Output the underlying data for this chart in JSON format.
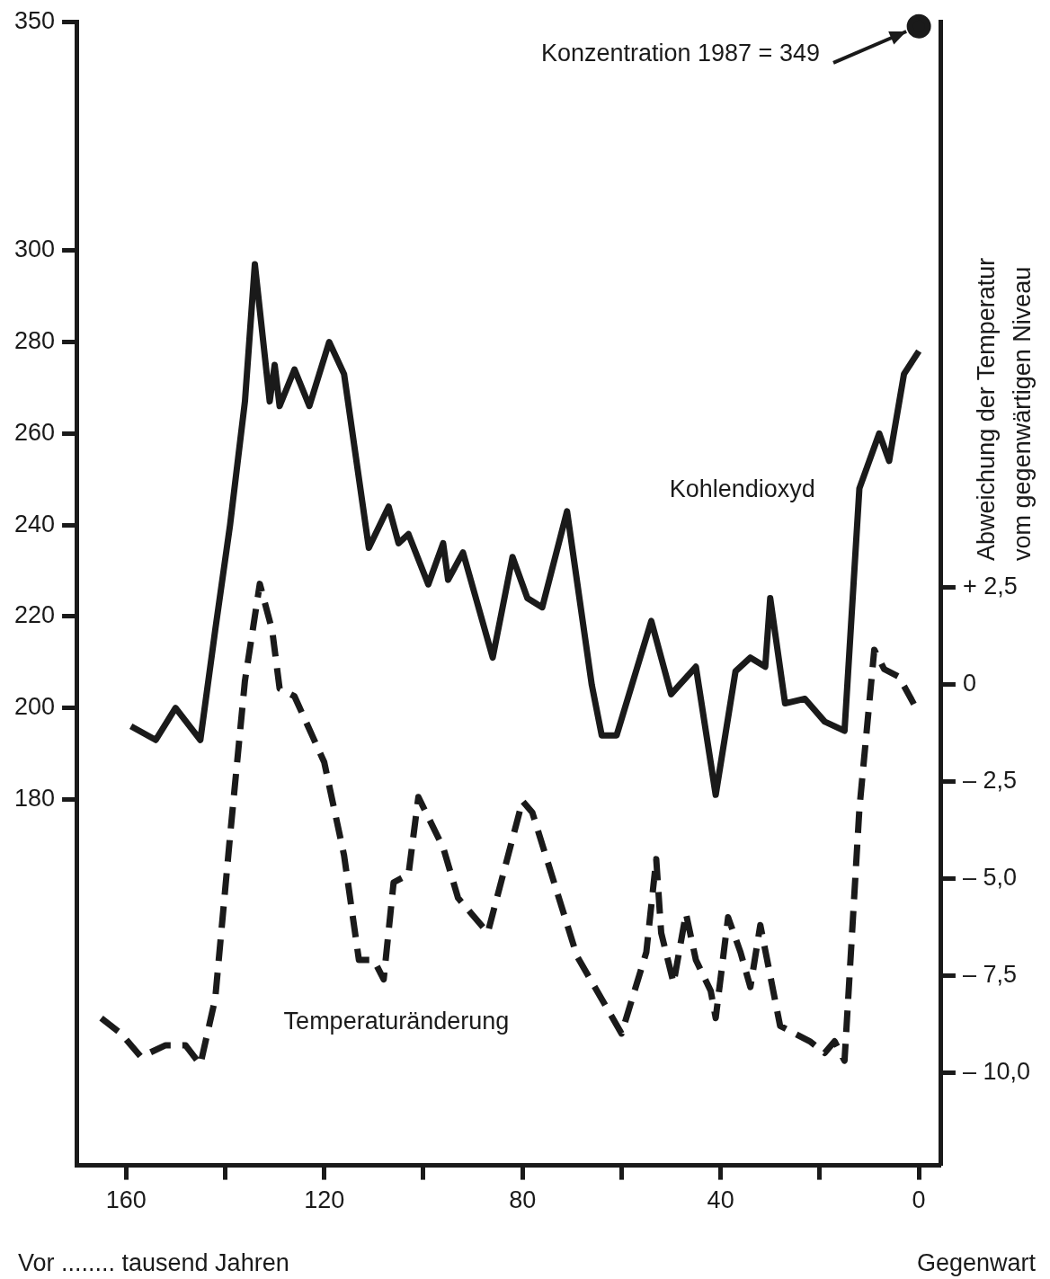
{
  "chart_data": {
    "type": "line",
    "xlabel": "Vor ........ tausend Jahren",
    "y2label": "Abweichung der Temperatur vom gegenwärtigen Niveau",
    "marker": "none",
    "xlim": [
      170,
      -4.5
    ],
    "xticks": [
      160,
      {
        "value": 140,
        "label": null
      },
      120,
      {
        "value": 100,
        "label": null
      },
      80,
      {
        "value": 60,
        "label": null
      },
      40,
      {
        "value": 20,
        "label": null
      },
      0
    ],
    "ylim": [
      100,
      350
    ],
    "yticks": [
      180,
      200,
      220,
      240,
      260,
      280,
      300,
      350
    ],
    "y2lim": [
      -12.4,
      17.1
    ],
    "y2ticks": [
      {
        "value": 2.5,
        "label": "+ 2,5"
      },
      {
        "value": 0,
        "label": "0"
      },
      {
        "value": -2.5,
        "label": "– 2,5"
      },
      {
        "value": -5,
        "label": "– 5,0"
      },
      {
        "value": -7.5,
        "label": "– 7,5"
      },
      {
        "value": -10,
        "label": "– 10,0"
      }
    ],
    "series": [
      {
        "name": "Kohlendioxyd",
        "color": "#1a1a1a",
        "x": [
          159,
          154,
          150,
          145,
          142,
          139,
          136,
          134,
          131,
          130,
          129,
          126,
          123,
          119,
          116,
          111,
          107,
          105,
          103,
          99,
          96,
          95,
          92,
          86,
          82,
          79,
          76,
          71,
          66,
          64,
          61,
          54,
          50,
          45,
          41,
          37,
          34,
          31,
          30,
          27,
          23,
          19,
          15,
          12,
          8,
          6,
          3,
          0
        ],
        "values": [
          196,
          193,
          200,
          193,
          217,
          240,
          267,
          297,
          267,
          275,
          266,
          274,
          266,
          280,
          273,
          235,
          244,
          236,
          238,
          227,
          236,
          228,
          234,
          211,
          233,
          224,
          222,
          243,
          205,
          194,
          194,
          219,
          203,
          209,
          181,
          208,
          211,
          209,
          224,
          201,
          202,
          197,
          195,
          248,
          260,
          254,
          273,
          278
        ]
      },
      {
        "name": "Temperaturänderung",
        "color": "#1a1a1a",
        "axis": "y2",
        "line_style": "dashed",
        "x": [
          165,
          161,
          157,
          152,
          148,
          145,
          142,
          139,
          136,
          133,
          130.5,
          129,
          126,
          120,
          116,
          113,
          110,
          108,
          106,
          103,
          101,
          96,
          93,
          87,
          80,
          78,
          69,
          60,
          55,
          53,
          52,
          49.5,
          47,
          45,
          42,
          41,
          38.5,
          36,
          34,
          32,
          28,
          22,
          19,
          17,
          15,
          12,
          9,
          7,
          4,
          1
        ],
        "values": [
          -8.6,
          -9.0,
          -9.6,
          -9.3,
          -9.3,
          -9.8,
          -8.1,
          -3.9,
          0.1,
          2.6,
          1.4,
          -0.1,
          -0.3,
          -2.0,
          -4.4,
          -7.1,
          -7.1,
          -7.6,
          -5.1,
          -4.9,
          -2.9,
          -4.2,
          -5.5,
          -6.4,
          -3.0,
          -3.3,
          -7.0,
          -9.0,
          -6.9,
          -4.5,
          -6.4,
          -7.7,
          -5.9,
          -7.1,
          -7.9,
          -8.6,
          -6.0,
          -6.9,
          -7.8,
          -6.2,
          -8.8,
          -9.2,
          -9.5,
          -9.2,
          -9.7,
          -3.2,
          0.9,
          0.4,
          0.2,
          -0.5
        ]
      },
      {
        "type": "scatter",
        "marker": "circle",
        "color": "#1a1a1a",
        "x": [
          0
        ],
        "values": [
          349
        ]
      }
    ],
    "annotations": [
      "Konzentration 1987 = 349",
      "Gegenwart"
    ]
  }
}
